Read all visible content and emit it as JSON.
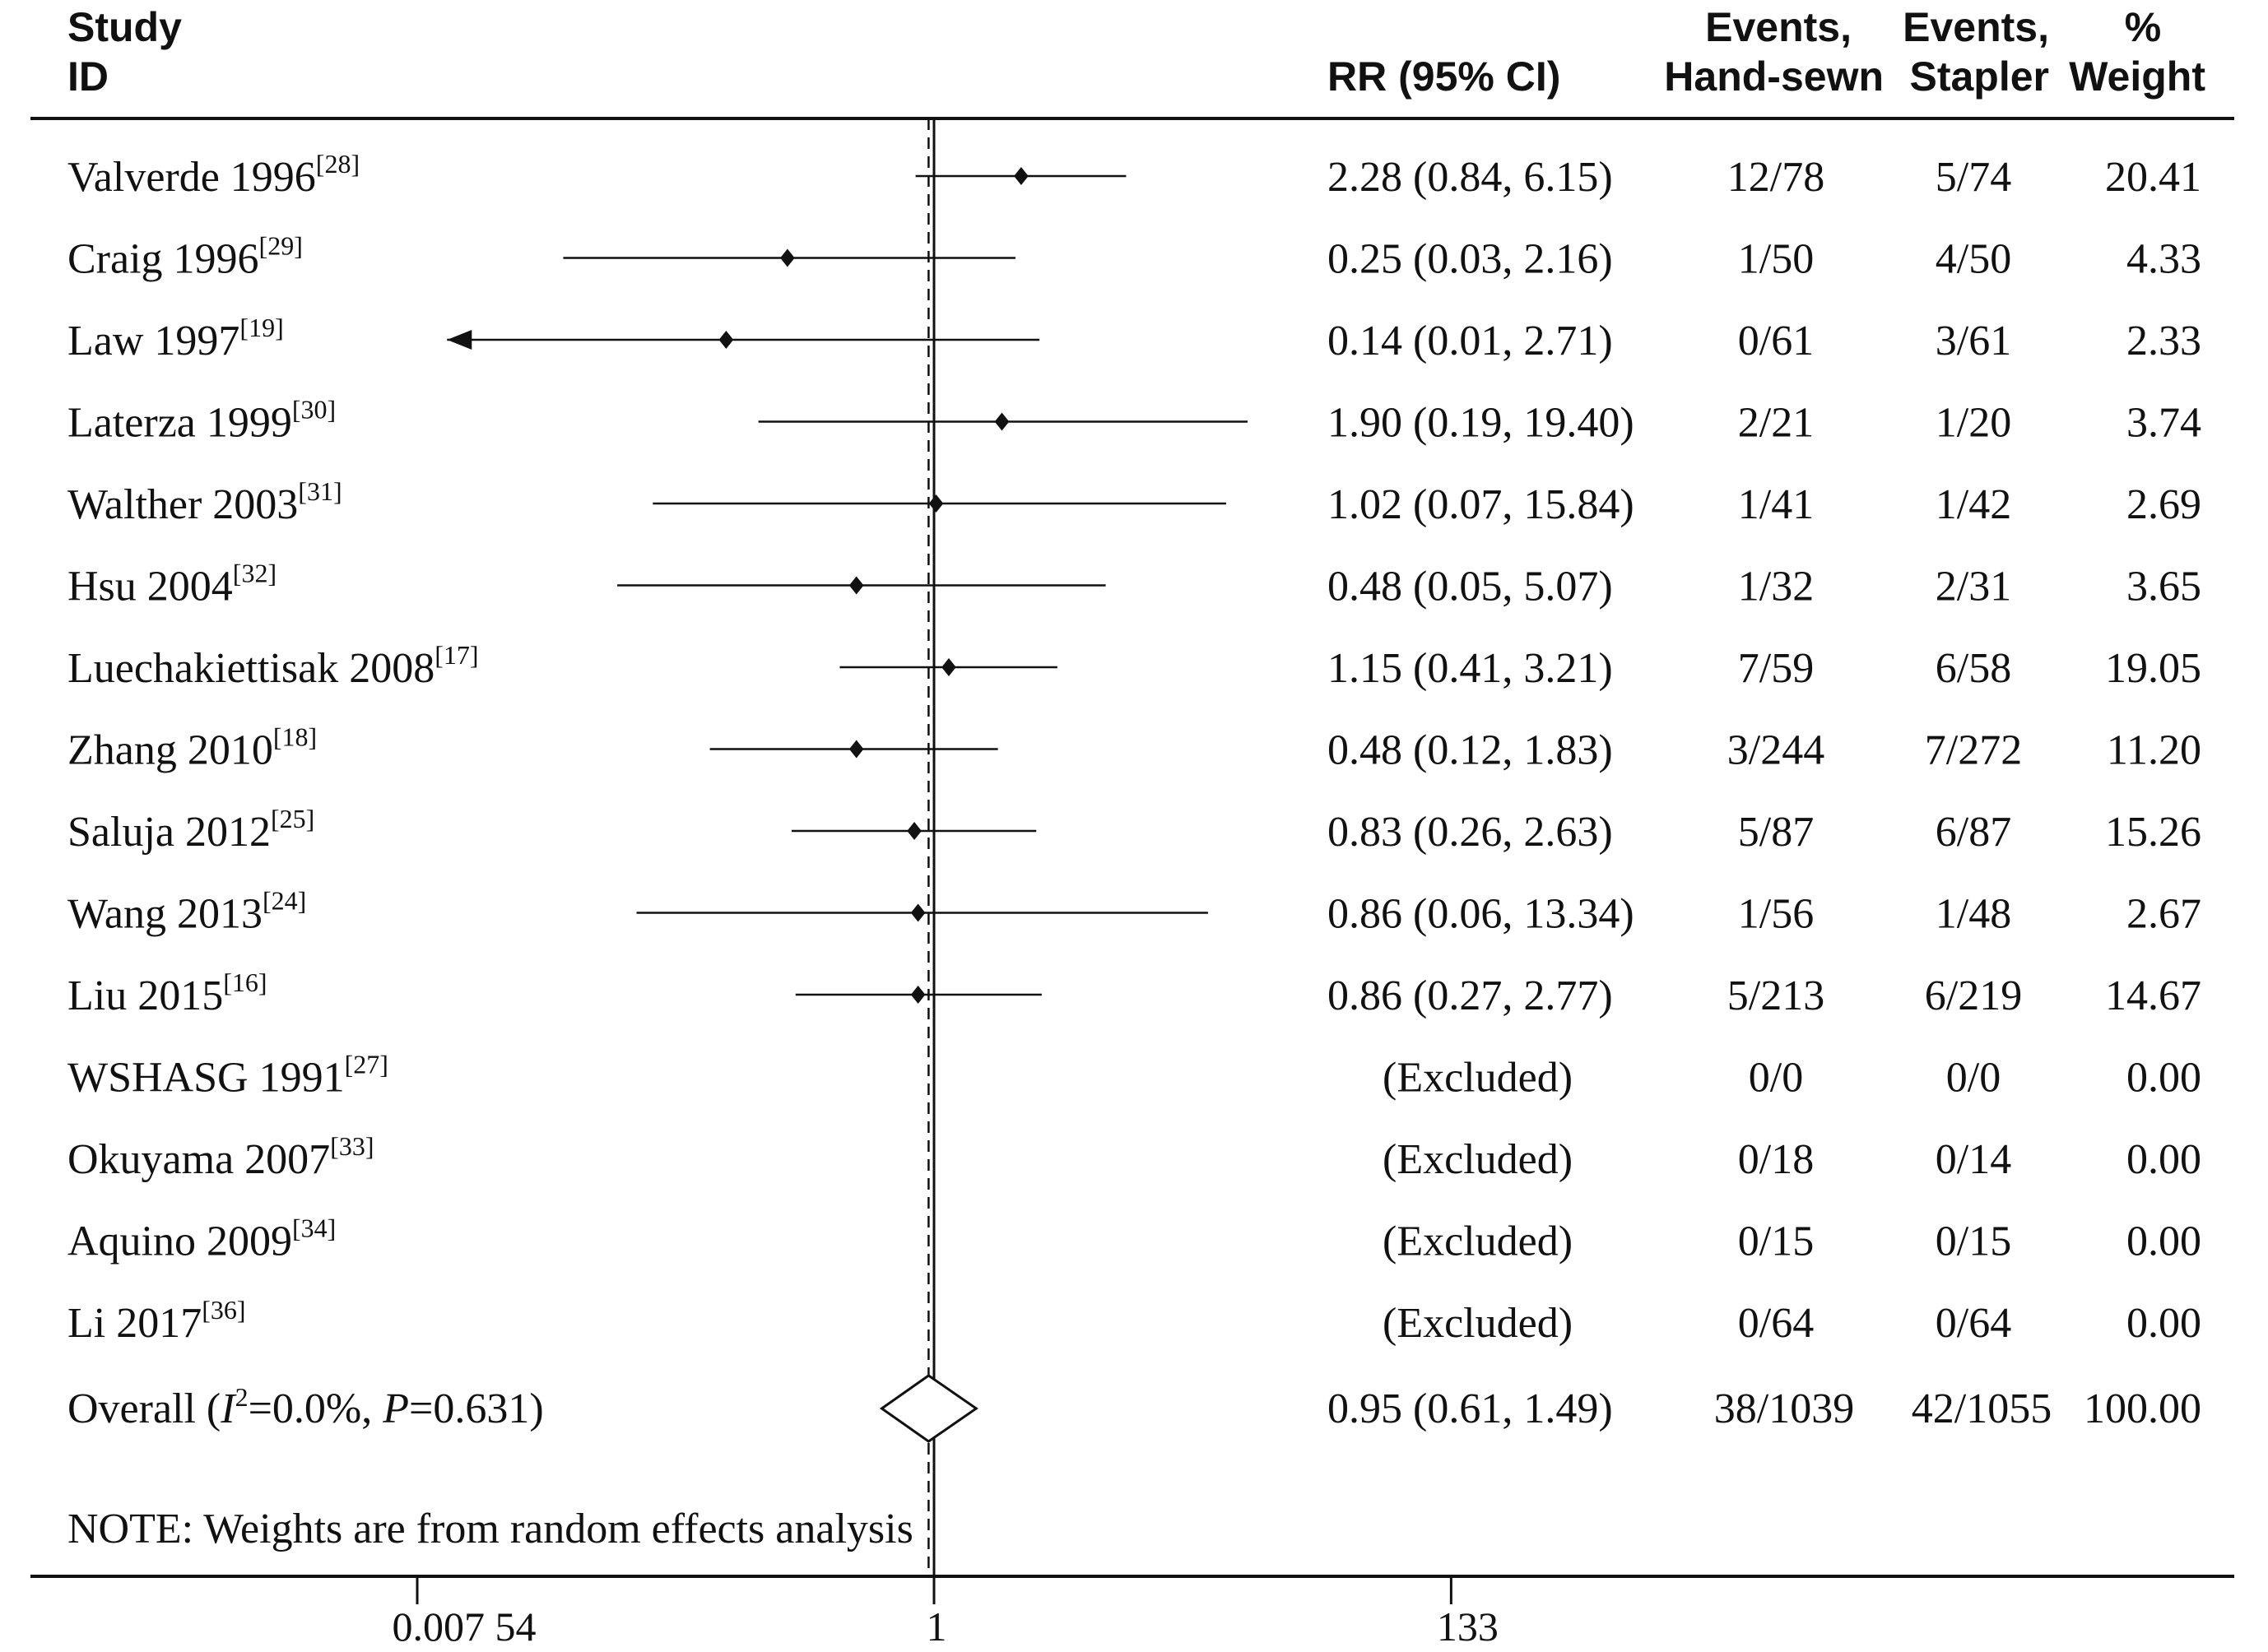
{
  "chart_data": {
    "type": "forest",
    "scale": "log",
    "x_ticks": [
      {
        "value": 0.00754,
        "label": "0.007 54"
      },
      {
        "value": 1,
        "label": "1"
      },
      {
        "value": 133,
        "label": "133"
      }
    ],
    "reference_value": 1,
    "headers": {
      "study_line1": "Study",
      "study_line2": "ID",
      "rr": "RR (95% CI)",
      "hand_line1": "Events,",
      "hand_line2": "Hand-sewn",
      "stapler_line1": "Events,",
      "stapler_line2": "Stapler",
      "weight_line1": "%",
      "weight_line2": "Weight"
    },
    "studies": [
      {
        "name": "Valverde 1996",
        "ref": "[28]",
        "rr": 2.28,
        "lo": 0.84,
        "hi": 6.15,
        "ci_text": "2.28 (0.84, 6.15)",
        "hand": "12/78",
        "stapler": "5/74",
        "weight": "20.41"
      },
      {
        "name": "Craig 1996",
        "ref": "[29]",
        "rr": 0.25,
        "lo": 0.03,
        "hi": 2.16,
        "ci_text": "0.25 (0.03, 2.16)",
        "hand": "1/50",
        "stapler": "4/50",
        "weight": "4.33"
      },
      {
        "name": "Law 1997",
        "ref": "[19]",
        "rr": 0.14,
        "lo": 0.01,
        "hi": 2.71,
        "ci_text": "0.14 (0.01, 2.71)",
        "hand": "0/61",
        "stapler": "3/61",
        "weight": "2.33",
        "arrow_left": true
      },
      {
        "name": "Laterza 1999",
        "ref": "[30]",
        "rr": 1.9,
        "lo": 0.19,
        "hi": 19.4,
        "ci_text": "1.90 (0.19, 19.40)",
        "hand": "2/21",
        "stapler": "1/20",
        "weight": "3.74"
      },
      {
        "name": "Walther 2003",
        "ref": "[31]",
        "rr": 1.02,
        "lo": 0.07,
        "hi": 15.84,
        "ci_text": "1.02 (0.07, 15.84)",
        "hand": "1/41",
        "stapler": "1/42",
        "weight": "2.69"
      },
      {
        "name": "Hsu 2004",
        "ref": "[32]",
        "rr": 0.48,
        "lo": 0.05,
        "hi": 5.07,
        "ci_text": "0.48 (0.05, 5.07)",
        "hand": "1/32",
        "stapler": "2/31",
        "weight": "3.65"
      },
      {
        "name": "Luechakiettisak 2008",
        "ref": "[17]",
        "rr": 1.15,
        "lo": 0.41,
        "hi": 3.21,
        "ci_text": "1.15 (0.41, 3.21)",
        "hand": "7/59",
        "stapler": "6/58",
        "weight": "19.05"
      },
      {
        "name": "Zhang 2010",
        "ref": "[18]",
        "rr": 0.48,
        "lo": 0.12,
        "hi": 1.83,
        "ci_text": "0.48 (0.12, 1.83)",
        "hand": "3/244",
        "stapler": "7/272",
        "weight": "11.20"
      },
      {
        "name": "Saluja 2012",
        "ref": "[25]",
        "rr": 0.83,
        "lo": 0.26,
        "hi": 2.63,
        "ci_text": "0.83 (0.26, 2.63)",
        "hand": "5/87",
        "stapler": "6/87",
        "weight": "15.26"
      },
      {
        "name": "Wang 2013",
        "ref": "[24]",
        "rr": 0.86,
        "lo": 0.06,
        "hi": 13.34,
        "ci_text": "0.86 (0.06, 13.34)",
        "hand": "1/56",
        "stapler": "1/48",
        "weight": "2.67"
      },
      {
        "name": "Liu 2015",
        "ref": "[16]",
        "rr": 0.86,
        "lo": 0.27,
        "hi": 2.77,
        "ci_text": "0.86 (0.27, 2.77)",
        "hand": "5/213",
        "stapler": "6/219",
        "weight": "14.67"
      },
      {
        "name": "WSHASG 1991",
        "ref": "[27]",
        "rr": null,
        "lo": null,
        "hi": null,
        "ci_text": "(Excluded)",
        "hand": "0/0",
        "stapler": "0/0",
        "weight": "0.00"
      },
      {
        "name": "Okuyama 2007",
        "ref": "[33]",
        "rr": null,
        "lo": null,
        "hi": null,
        "ci_text": "(Excluded)",
        "hand": "0/18",
        "stapler": "0/14",
        "weight": "0.00"
      },
      {
        "name": "Aquino 2009",
        "ref": "[34]",
        "rr": null,
        "lo": null,
        "hi": null,
        "ci_text": "(Excluded)",
        "hand": "0/15",
        "stapler": "0/15",
        "weight": "0.00"
      },
      {
        "name": "Li 2017",
        "ref": "[36]",
        "rr": null,
        "lo": null,
        "hi": null,
        "ci_text": "(Excluded)",
        "hand": "0/64",
        "stapler": "0/64",
        "weight": "0.00"
      }
    ],
    "overall": {
      "label_prefix": "Overall  (",
      "i2_symbol": "I",
      "i2_sup": "2",
      "i2_value": "=0.0%, ",
      "p_symbol": "P",
      "p_value": "=0.631)",
      "rr": 0.95,
      "lo": 0.61,
      "hi": 1.49,
      "ci_text": "0.95 (0.61, 1.49)",
      "hand": "38/1039",
      "stapler": "42/1055",
      "weight": "100.00"
    },
    "note": "NOTE: Weights are from random effects analysis"
  }
}
